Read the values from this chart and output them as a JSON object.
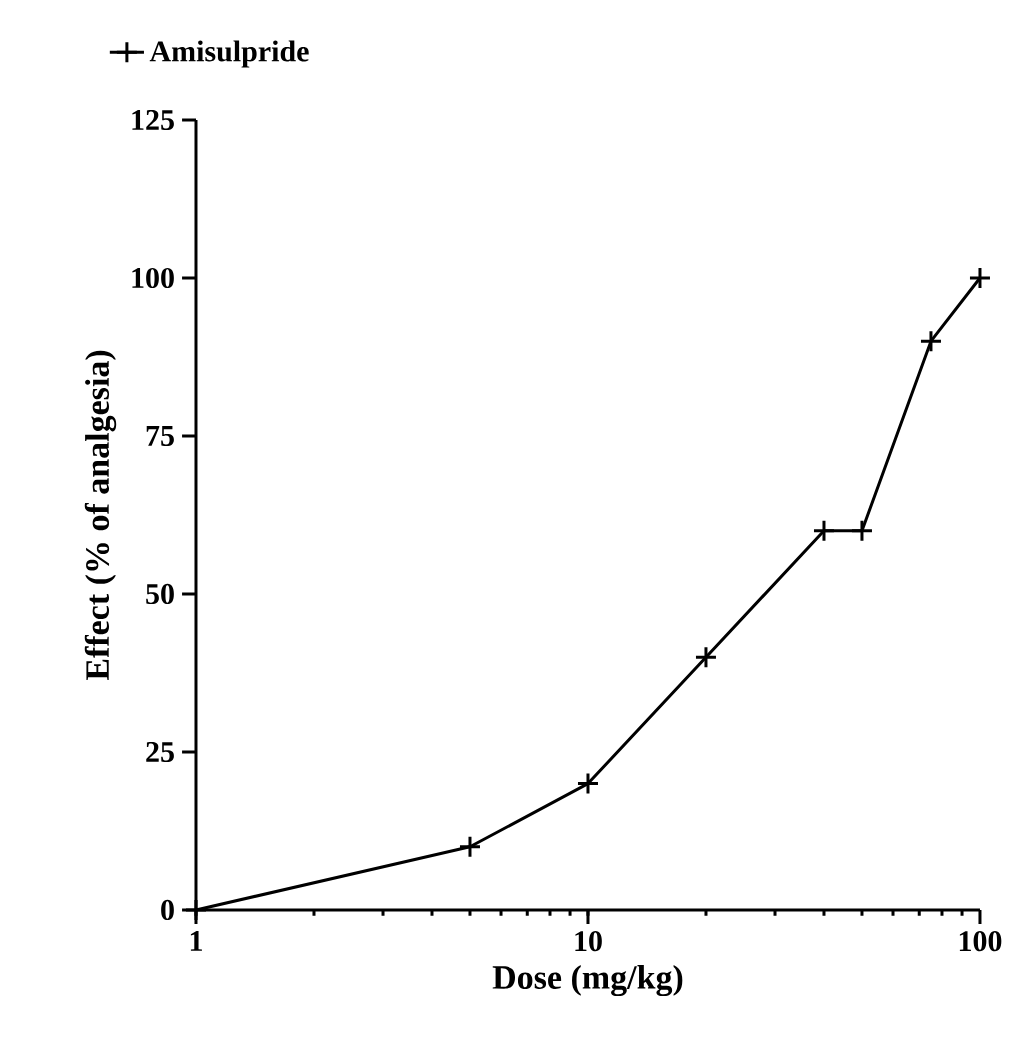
{
  "chart_data": {
    "type": "line",
    "xlabel": "Dose (mg/kg)",
    "ylabel": "Effect (% of analgesia)",
    "log": "x",
    "xlim": [
      1,
      100
    ],
    "xticks": [
      1,
      10,
      100
    ],
    "ylim": [
      0,
      125
    ],
    "yticks": [
      0,
      25,
      50,
      75,
      100,
      125
    ],
    "legend": "top left",
    "marker": "cross",
    "line_style": "solid",
    "grid": false,
    "series": [
      {
        "name": "Amisulpride",
        "color": "#000000",
        "x": [
          1,
          5,
          10,
          20,
          40,
          50,
          75,
          100
        ],
        "values": [
          0,
          10,
          20,
          40,
          60,
          60,
          90,
          100
        ]
      }
    ]
  }
}
